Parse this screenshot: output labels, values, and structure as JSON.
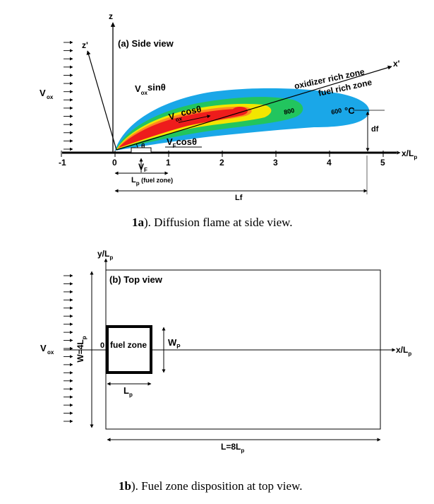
{
  "colors": {
    "outer_zone": "#1aa7e8",
    "mid_zone": "#22c55e",
    "inner_zone": "#f2e600",
    "orange_zone": "#ff8a1f",
    "core_zone": "#ee1c1c"
  },
  "side_view": {
    "title": "(a) Side view",
    "z_label": "z",
    "zprime_label": "z'",
    "vox_label": "V",
    "vox_sub": "ox",
    "vox_sin_main": "V",
    "vox_sin_sub": "ox",
    "vox_sin_tail": "sinθ",
    "vox_cos_main": "V",
    "vox_cos_sub": "ox",
    "vox_cos_tail": "cosθ",
    "vf_cos_main": "V",
    "vf_cos_sub": "F",
    "vf_cos_tail": "cosθ",
    "theta": "θ",
    "vf_main": "V",
    "vf_sub": "F",
    "lp_main": "L",
    "lp_sub": "p",
    "lp_tail": " (fuel zone)",
    "lf_label": "Lf",
    "df_label": "df",
    "oxidizer_zone": "oxidizer rich zone",
    "fuel_zone": "fuel rich zone",
    "xprime_label": "x'",
    "iso_800": "800",
    "iso_600": "600",
    "temp_unit": "°C",
    "x_axis_label": "x/L",
    "x_axis_sub": "p",
    "ticks": [
      "-1",
      "0",
      "1",
      "2",
      "3",
      "4",
      "5"
    ],
    "caption_num": "1a",
    "caption_text": "). Diffusion flame at side view."
  },
  "top_view": {
    "title": "(b) Top view",
    "y_axis_main": "y/L",
    "y_axis_sub": "p",
    "vox_label": "V",
    "vox_sub": "ox",
    "w_main": "W=4L",
    "w_sub": "p",
    "origin": "0",
    "fuel_zone": "fuel zone",
    "wp_main": "W",
    "wp_sub": "P",
    "lp_main": "L",
    "lp_sub": "p",
    "l_main": "L=8L",
    "l_sub": "p",
    "x_axis_label": "x/L",
    "x_axis_sub": "p",
    "caption_num": "1b",
    "caption_text": "). Fuel zone disposition at top view."
  }
}
